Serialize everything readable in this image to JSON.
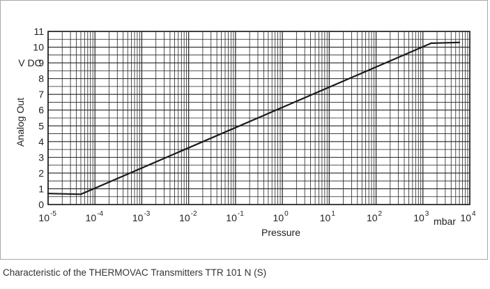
{
  "caption": "Characteristic of the THERMOVAC Transmitters TTR 101 N (S)",
  "chart_data": {
    "type": "line",
    "title": "",
    "xlabel": "Pressure",
    "x_unit": "mbar",
    "ylabel": "Analog Out",
    "y_unit": "V DC",
    "xscale": "log",
    "xlim": [
      1e-05,
      10000
    ],
    "ylim": [
      0,
      11
    ],
    "grid": true,
    "x_ticks": [
      {
        "base": "10",
        "exp": "-5",
        "value": 1e-05
      },
      {
        "base": "10",
        "exp": "-4",
        "value": 0.0001
      },
      {
        "base": "10",
        "exp": "-3",
        "value": 0.001
      },
      {
        "base": "10",
        "exp": "-2",
        "value": 0.01
      },
      {
        "base": "10",
        "exp": "-1",
        "value": 0.1
      },
      {
        "base": "10",
        "exp": "0",
        "value": 1
      },
      {
        "base": "10",
        "exp": "1",
        "value": 10
      },
      {
        "base": "10",
        "exp": "2",
        "value": 100
      },
      {
        "base": "10",
        "exp": "3",
        "value": 1000
      },
      {
        "base": "10",
        "exp": "4",
        "value": 10000
      }
    ],
    "y_ticks": [
      "0",
      "1",
      "2",
      "3",
      "4",
      "5",
      "6",
      "7",
      "8",
      "9",
      "10",
      "11"
    ],
    "series": [
      {
        "color": "#1a1a1a",
        "points": [
          {
            "x": 1e-05,
            "y": 0.7
          },
          {
            "x": 5e-05,
            "y": 0.65
          },
          {
            "x": 1500,
            "y": 10.25
          },
          {
            "x": 6000,
            "y": 10.3
          }
        ]
      }
    ]
  }
}
